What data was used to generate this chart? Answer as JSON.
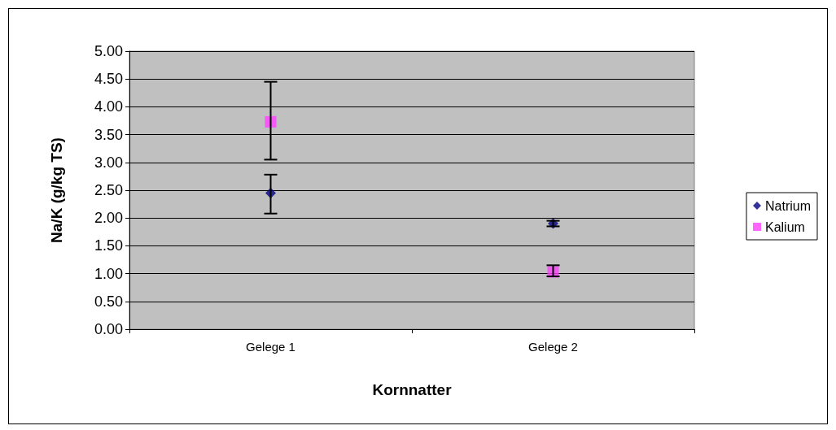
{
  "chart_data": {
    "type": "scatter",
    "xlabel": "Kornnatter",
    "ylabel": "Na/K (g/kg TS)",
    "categories": [
      "Gelege 1",
      "Gelege 2"
    ],
    "series": [
      {
        "name": "Natrium",
        "color": "#000080",
        "marker": "diamond",
        "values": [
          2.45,
          1.9
        ],
        "errors": [
          [
            2.08,
            2.78
          ],
          [
            1.85,
            1.95
          ]
        ]
      },
      {
        "name": "Kalium",
        "color": "#ff40ff",
        "marker": "square",
        "values": [
          3.73,
          1.03
        ],
        "errors": [
          [
            3.05,
            4.45
          ],
          [
            0.95,
            1.15
          ]
        ]
      }
    ],
    "ylim": [
      0,
      5
    ],
    "yticks": [
      {
        "value": 0,
        "label": "0.00"
      },
      {
        "value": 0.5,
        "label": "0.50"
      },
      {
        "value": 1,
        "label": "1.00"
      },
      {
        "value": 1.5,
        "label": "1.50"
      },
      {
        "value": 2,
        "label": "2.00"
      },
      {
        "value": 2.5,
        "label": "2.50"
      },
      {
        "value": 3,
        "label": "3.00"
      },
      {
        "value": 3.5,
        "label": "3.50"
      },
      {
        "value": 4,
        "label": "4.00"
      },
      {
        "value": 4.5,
        "label": "4.50"
      },
      {
        "value": 5,
        "label": "5.00"
      }
    ],
    "grid": "y",
    "legend": "right"
  }
}
